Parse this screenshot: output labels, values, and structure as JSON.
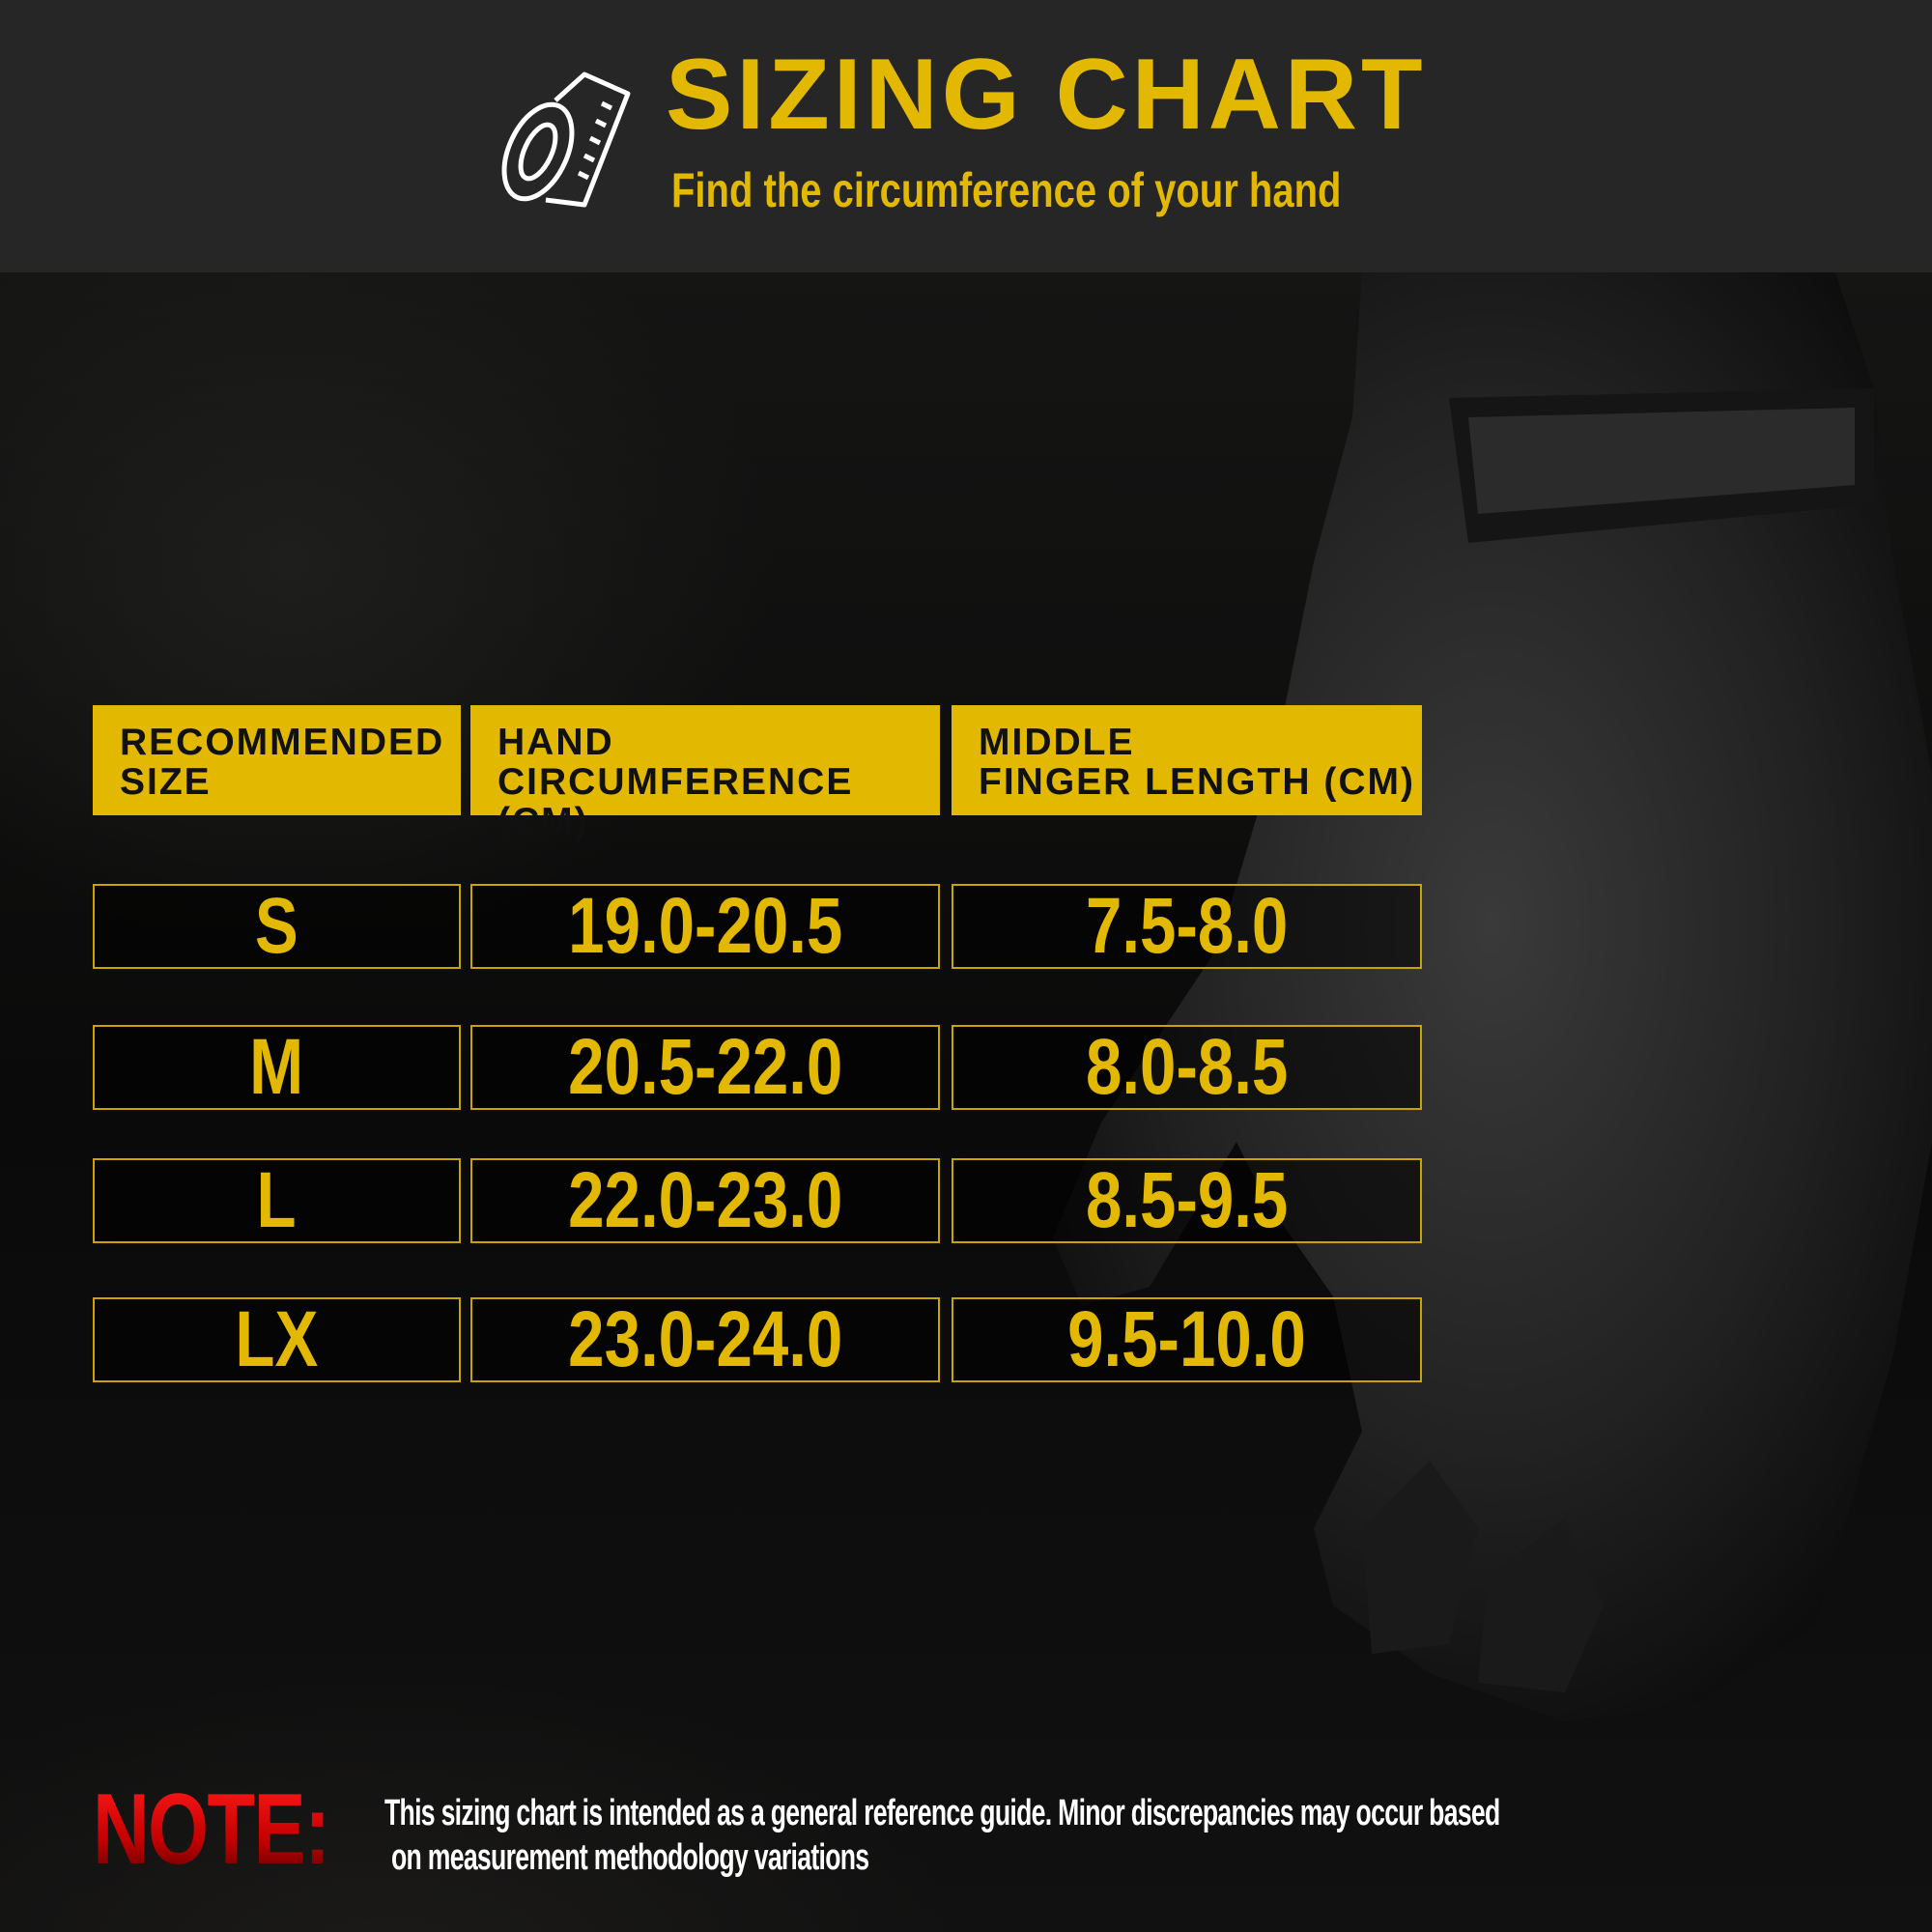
{
  "header": {
    "title": "SIZING CHART",
    "subtitle": "Find the circumference of your hand",
    "icon": "measuring-tape-icon"
  },
  "table": {
    "columns": [
      {
        "line1": "RECOMMENDED",
        "line2": "SIZE"
      },
      {
        "line1": "HAND",
        "line2": "CIRCUMFERENCE (CM)"
      },
      {
        "line1": "MIDDLE",
        "line2": "FINGER LENGTH (CM)"
      }
    ],
    "rows": [
      {
        "size": "S",
        "hand": "19.0-20.5",
        "finger": "7.5-8.0"
      },
      {
        "size": "M",
        "hand": "20.5-22.0",
        "finger": "8.0-8.5"
      },
      {
        "size": "L",
        "hand": "22.0-23.0",
        "finger": "8.5-9.5"
      },
      {
        "size": "LX",
        "hand": "23.0-24.0",
        "finger": "9.5-10.0"
      }
    ]
  },
  "note": {
    "label": "NOTE:",
    "line1": "This sizing chart is intended as a general reference guide. Minor discrepancies may occur based",
    "line2": "on measurement methodology variations"
  },
  "colors": {
    "accent": "#e2b800",
    "header_bg": "#262626",
    "note_red": "#e00000"
  }
}
